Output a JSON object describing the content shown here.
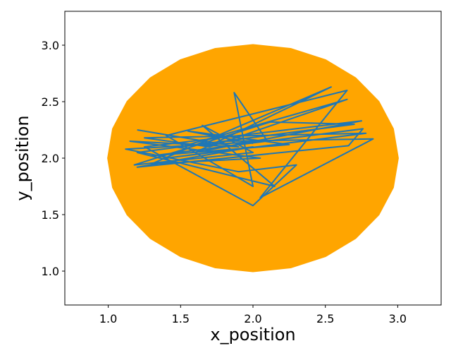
{
  "chart_data": {
    "type": "line",
    "x_label": "x_position",
    "y_label": "y_position",
    "xlim": [
      0.7,
      3.3
    ],
    "ylim": [
      0.7,
      3.3
    ],
    "xticks": [
      {
        "value": 1,
        "label": "1.0"
      },
      1.5,
      {
        "value": 2,
        "label": "2.0"
      },
      2.5,
      {
        "value": 3,
        "label": "3.0"
      }
    ],
    "yticks": [
      {
        "value": 1,
        "label": "1.0"
      },
      1.5,
      {
        "value": 2,
        "label": "2.0"
      },
      2.5,
      {
        "value": 3,
        "label": "3.0"
      }
    ],
    "grid": false,
    "series": [
      {
        "color": "#ffa500",
        "fill": true,
        "x": [
          3,
          2.966,
          2.866,
          2.707,
          2.5,
          2.259,
          2,
          1.741,
          1.5,
          1.293,
          1.134,
          1.034,
          1,
          1.034,
          1.134,
          1.293,
          1.5,
          1.741,
          2,
          2.259,
          2.5,
          2.707,
          2.866,
          2.966
        ],
        "values": [
          2,
          2.259,
          2.5,
          2.707,
          2.866,
          2.966,
          3,
          2.966,
          2.866,
          2.707,
          2.5,
          2.259,
          2,
          1.741,
          1.5,
          1.293,
          1.134,
          1.034,
          1,
          1.034,
          1.134,
          1.293,
          1.5,
          1.741
        ]
      },
      {
        "color": "#1f77b4",
        "x": [
          1.2,
          1.9,
          1.15,
          2.05,
          1.3,
          2.54,
          1.6,
          2.75,
          1.25,
          2.0,
          2.3,
          1.9,
          1.12,
          2.1,
          1.87,
          2.0,
          1.4,
          2.65,
          2.05,
          2.83,
          1.8,
          1.2,
          2.15,
          1.65,
          2.0,
          1.18,
          2.12,
          2.7,
          1.5,
          2.65,
          1.7,
          1.25,
          2.78,
          1.4,
          2.0,
          1.2,
          2.66,
          2.76,
          1.3,
          2.25,
          1.55,
          2.0
        ],
        "values": [
          2.25,
          2.1,
          2.15,
          2.0,
          1.95,
          2.63,
          2.05,
          2.33,
          2.1,
          1.58,
          1.94,
          1.88,
          2.08,
          2.15,
          2.58,
          1.75,
          2.2,
          2.6,
          1.65,
          2.17,
          2.15,
          2.05,
          1.75,
          2.29,
          2.05,
          1.94,
          2.32,
          2.3,
          2.1,
          2.52,
          2.1,
          2.18,
          2.22,
          2.0,
          2.1,
          1.92,
          2.11,
          2.26,
          2.02,
          2.12,
          2.24,
          2.13
        ]
      }
    ]
  }
}
